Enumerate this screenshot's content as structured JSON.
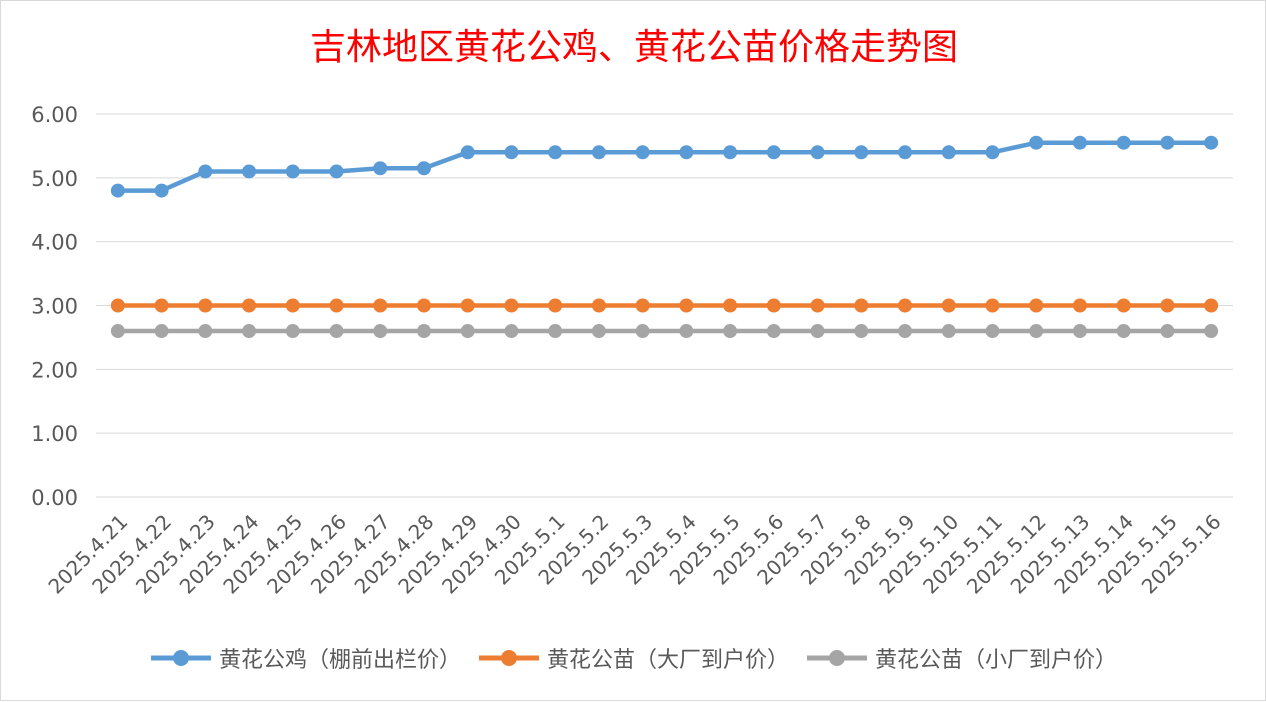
{
  "chart_data": {
    "type": "line",
    "title": "吉林地区黄花公鸡、黄花公苗价格走势图",
    "categories": [
      "2025.4.21",
      "2025.4.22",
      "2025.4.23",
      "2025.4.24",
      "2025.4.25",
      "2025.4.26",
      "2025.4.27",
      "2025.4.28",
      "2025.4.29",
      "2025.4.30",
      "2025.5.1",
      "2025.5.2",
      "2025.5.3",
      "2025.5.4",
      "2025.5.5",
      "2025.5.6",
      "2025.5.7",
      "2025.5.8",
      "2025.5.9",
      "2025.5.10",
      "2025.5.11",
      "2025.5.12",
      "2025.5.13",
      "2025.5.14",
      "2025.5.15",
      "2025.5.16"
    ],
    "series": [
      {
        "name": "黄花公鸡（棚前出栏价）",
        "color": "#5b9bd5",
        "values": [
          4.8,
          4.8,
          5.1,
          5.1,
          5.1,
          5.1,
          5.15,
          5.15,
          5.4,
          5.4,
          5.4,
          5.4,
          5.4,
          5.4,
          5.4,
          5.4,
          5.4,
          5.4,
          5.4,
          5.4,
          5.4,
          5.55,
          5.55,
          5.55,
          5.55,
          5.55
        ]
      },
      {
        "name": "黄花公苗（大厂到户价）",
        "color": "#ed7d31",
        "values": [
          3.0,
          3.0,
          3.0,
          3.0,
          3.0,
          3.0,
          3.0,
          3.0,
          3.0,
          3.0,
          3.0,
          3.0,
          3.0,
          3.0,
          3.0,
          3.0,
          3.0,
          3.0,
          3.0,
          3.0,
          3.0,
          3.0,
          3.0,
          3.0,
          3.0,
          3.0
        ]
      },
      {
        "name": "黄花公苗（小厂到户价）",
        "color": "#a5a5a5",
        "values": [
          2.6,
          2.6,
          2.6,
          2.6,
          2.6,
          2.6,
          2.6,
          2.6,
          2.6,
          2.6,
          2.6,
          2.6,
          2.6,
          2.6,
          2.6,
          2.6,
          2.6,
          2.6,
          2.6,
          2.6,
          2.6,
          2.6,
          2.6,
          2.6,
          2.6,
          2.6
        ]
      }
    ],
    "ylim": [
      0,
      6
    ],
    "yticks": [
      "0.00",
      "1.00",
      "2.00",
      "3.00",
      "4.00",
      "5.00",
      "6.00"
    ],
    "grid": true,
    "legend_position": "bottom",
    "xlabel": "",
    "ylabel": ""
  }
}
